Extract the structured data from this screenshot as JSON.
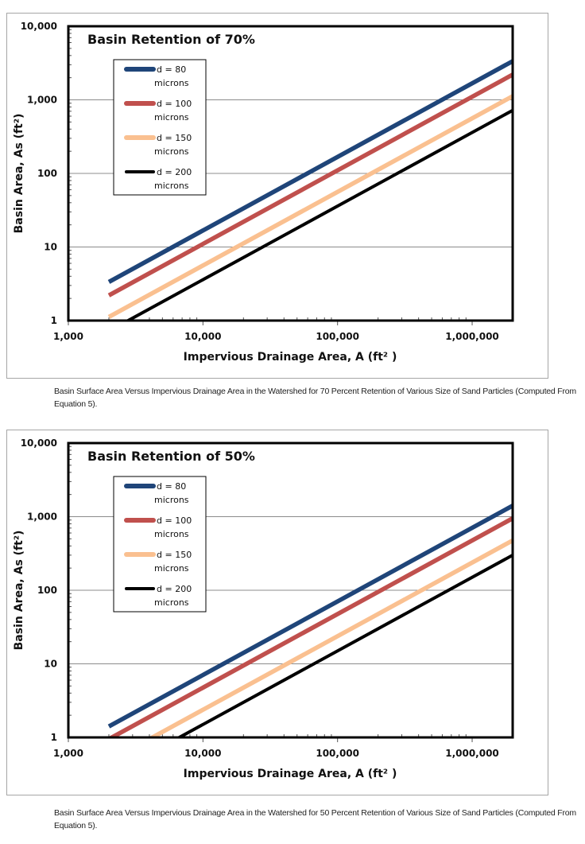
{
  "charts_captions": [
    "Basin Surface Area Versus Impervious Drainage Area in the Watershed for 70 Percent Retention of Various Size of Sand Particles (Computed From Equation 5).",
    "Basin Surface Area Versus Impervious Drainage Area in the Watershed for 50 Percent Retention of Various Size of Sand Particles (Computed From Equation 5)."
  ],
  "chart_data": [
    {
      "type": "line",
      "title": "Basin Retention of 70%",
      "xlabel": "Impervious Drainage Area, A (ft² )",
      "ylabel": "Basin Area, As (ft²)",
      "x_scale": "log",
      "y_scale": "log",
      "xlim": [
        1000,
        2000000
      ],
      "ylim": [
        1,
        10000
      ],
      "x_ticks": [
        "1,000",
        "10,000",
        "100,000",
        "1,000,000"
      ],
      "y_ticks": [
        "1",
        "10",
        "100",
        "1,000",
        "10,000"
      ],
      "grid": "horizontal major",
      "legend": "top-left",
      "series": [
        {
          "name": "d = 80 microns",
          "label1": "d = 80",
          "label2": "microns",
          "color": "#1f4579",
          "x": [
            2000,
            2000000
          ],
          "y": [
            3.35,
            3350
          ]
        },
        {
          "name": "d = 100 microns",
          "label1": "d = 100",
          "label2": "microns",
          "color": "#c0504d",
          "x": [
            2000,
            2000000
          ],
          "y": [
            2.2,
            2200
          ]
        },
        {
          "name": "d = 150 microns",
          "label1": "d = 150",
          "label2": "microns",
          "color": "#fac090",
          "x": [
            2000,
            2000000
          ],
          "y": [
            1.12,
            1120
          ]
        },
        {
          "name": "d = 200 microns",
          "label1": "d = 200",
          "label2": "microns",
          "color": "#000000",
          "x": [
            2000,
            2000000
          ],
          "y": [
            0.72,
            720
          ]
        }
      ]
    },
    {
      "type": "line",
      "title": "Basin Retention of 50%",
      "xlabel": "Impervious Drainage Area, A (ft² )",
      "ylabel": "Basin Area, As (ft²)",
      "x_scale": "log",
      "y_scale": "log",
      "xlim": [
        1000,
        2000000
      ],
      "ylim": [
        1,
        10000
      ],
      "x_ticks": [
        "1,000",
        "10,000",
        "100,000",
        "1,000,000"
      ],
      "y_ticks": [
        "1",
        "10",
        "100",
        "1,000",
        "10,000"
      ],
      "grid": "horizontal major",
      "legend": "top-left",
      "series": [
        {
          "name": "d = 80 microns",
          "label1": "d = 80",
          "label2": "microns",
          "color": "#1f4579",
          "x": [
            2000,
            2000000
          ],
          "y": [
            1.41,
            1410
          ]
        },
        {
          "name": "d = 100 microns",
          "label1": "d = 100",
          "label2": "microns",
          "color": "#c0504d",
          "x": [
            2000,
            2000000
          ],
          "y": [
            0.95,
            950
          ]
        },
        {
          "name": "d = 150 microns",
          "label1": "d = 150",
          "label2": "microns",
          "color": "#fac090",
          "x": [
            2000,
            2000000
          ],
          "y": [
            0.475,
            475
          ]
        },
        {
          "name": "d = 200 microns",
          "label1": "d = 200",
          "label2": "microns",
          "color": "#000000",
          "x": [
            2000,
            2000000
          ],
          "y": [
            0.3,
            300
          ]
        }
      ]
    }
  ]
}
